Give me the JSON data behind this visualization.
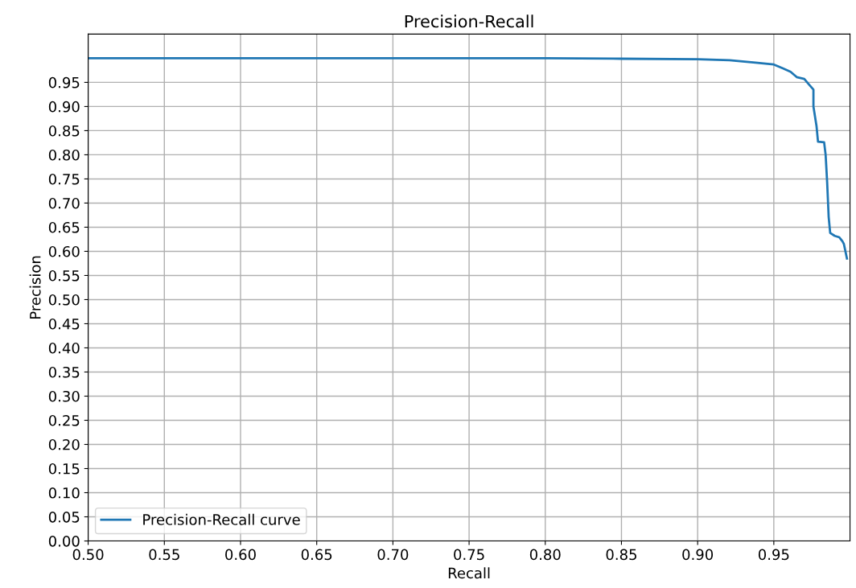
{
  "chart_data": {
    "type": "line",
    "title": "Precision-Recall",
    "xlabel": "Recall",
    "ylabel": "Precision",
    "series": [
      {
        "name": "Precision-Recall curve",
        "color": "#1f77b4",
        "x": [
          0.5,
          0.7,
          0.8,
          0.85,
          0.9,
          0.921,
          0.938,
          0.95,
          0.956,
          0.961,
          0.965,
          0.97,
          0.973,
          0.976,
          0.976,
          0.978,
          0.979,
          0.983,
          0.984,
          0.985,
          0.986,
          0.987,
          0.99,
          0.993,
          0.995,
          0.996,
          0.998
        ],
        "values": [
          1.0,
          1.0,
          1.0,
          0.999,
          0.998,
          0.996,
          0.991,
          0.987,
          0.979,
          0.972,
          0.961,
          0.957,
          0.946,
          0.935,
          0.9,
          0.86,
          0.827,
          0.826,
          0.8,
          0.743,
          0.671,
          0.638,
          0.632,
          0.629,
          0.621,
          0.615,
          0.585
        ]
      }
    ],
    "xlim": [
      0.5,
      1.0
    ],
    "ylim": [
      0,
      1.05
    ],
    "xticks": [
      {
        "value": 0.5,
        "label": "0.50"
      },
      {
        "value": 0.55,
        "label": "0.55"
      },
      {
        "value": 0.6,
        "label": "0.60"
      },
      {
        "value": 0.65,
        "label": "0.65"
      },
      {
        "value": 0.7,
        "label": "0.70"
      },
      {
        "value": 0.75,
        "label": "0.75"
      },
      {
        "value": 0.8,
        "label": "0.80"
      },
      {
        "value": 0.85,
        "label": "0.85"
      },
      {
        "value": 0.9,
        "label": "0.90"
      },
      {
        "value": 0.95,
        "label": "0.95"
      }
    ],
    "yticks": [
      {
        "value": 0,
        "label": "0.00"
      },
      {
        "value": 0.05,
        "label": "0.05"
      },
      {
        "value": 0.1,
        "label": "0.10"
      },
      {
        "value": 0.15,
        "label": "0.15"
      },
      {
        "value": 0.2,
        "label": "0.20"
      },
      {
        "value": 0.25,
        "label": "0.25"
      },
      {
        "value": 0.3,
        "label": "0.30"
      },
      {
        "value": 0.35,
        "label": "0.35"
      },
      {
        "value": 0.4,
        "label": "0.40"
      },
      {
        "value": 0.45,
        "label": "0.45"
      },
      {
        "value": 0.5,
        "label": "0.50"
      },
      {
        "value": 0.55,
        "label": "0.55"
      },
      {
        "value": 0.6,
        "label": "0.60"
      },
      {
        "value": 0.65,
        "label": "0.65"
      },
      {
        "value": 0.7,
        "label": "0.70"
      },
      {
        "value": 0.75,
        "label": "0.75"
      },
      {
        "value": 0.8,
        "label": "0.80"
      },
      {
        "value": 0.85,
        "label": "0.85"
      },
      {
        "value": 0.9,
        "label": "0.90"
      },
      {
        "value": 0.95,
        "label": "0.95"
      }
    ],
    "grid": true,
    "legend": "lower left"
  }
}
